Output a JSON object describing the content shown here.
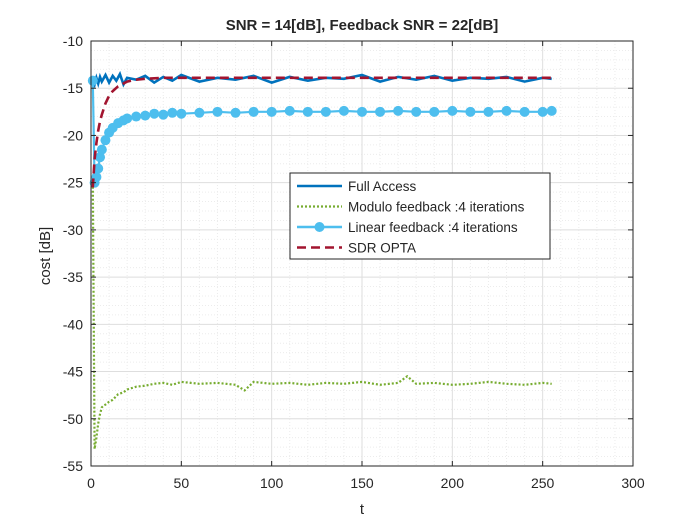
{
  "chart_data": {
    "type": "line",
    "title": "SNR = 14[dB], Feedback SNR = 22[dB]",
    "xlabel": "t",
    "ylabel": "cost [dB]",
    "xlim": [
      0,
      300
    ],
    "ylim": [
      -55,
      -10
    ],
    "xticks": [
      0,
      50,
      100,
      150,
      200,
      250,
      300
    ],
    "yticks": [
      -55,
      -50,
      -45,
      -40,
      -35,
      -30,
      -25,
      -20,
      -15,
      -10
    ],
    "grid": true,
    "minor_grid": true,
    "legend_position": "center-right",
    "series": [
      {
        "name": "Full Access",
        "color": "#0072BD",
        "style": "solid",
        "marker": "none",
        "x": [
          1,
          2,
          3,
          4,
          5,
          6,
          8,
          10,
          12,
          14,
          16,
          18,
          20,
          25,
          30,
          35,
          40,
          45,
          50,
          60,
          70,
          80,
          90,
          100,
          110,
          120,
          130,
          140,
          150,
          160,
          170,
          180,
          190,
          200,
          210,
          220,
          230,
          240,
          250,
          255
        ],
        "y": [
          -14.1,
          -14.6,
          -13.9,
          -14.5,
          -13.8,
          -14.3,
          -13.6,
          -14.4,
          -13.7,
          -14.2,
          -13.5,
          -14.6,
          -13.9,
          -14.1,
          -13.7,
          -14.4,
          -13.8,
          -14.2,
          -13.6,
          -14.3,
          -13.9,
          -14.1,
          -13.7,
          -14.4,
          -13.8,
          -14.2,
          -13.9,
          -14.0,
          -13.6,
          -14.3,
          -13.8,
          -14.1,
          -13.7,
          -14.2,
          -13.9,
          -14.0,
          -13.8,
          -14.3,
          -13.9,
          -14.0
        ]
      },
      {
        "name": "Modulo feedback :4 iterations",
        "color": "#77AC30",
        "style": "dotted",
        "marker": "none",
        "x": [
          1,
          2,
          3,
          4,
          5,
          6,
          7,
          8,
          10,
          12,
          15,
          18,
          20,
          25,
          30,
          35,
          40,
          45,
          50,
          60,
          70,
          80,
          85,
          90,
          100,
          110,
          120,
          130,
          140,
          150,
          160,
          170,
          175,
          180,
          190,
          200,
          210,
          220,
          230,
          240,
          250,
          255
        ],
        "y": [
          -25.0,
          -53.2,
          -52.0,
          -50.5,
          -49.5,
          -48.8,
          -48.6,
          -48.5,
          -48.2,
          -48.0,
          -47.4,
          -47.2,
          -46.9,
          -46.6,
          -46.5,
          -46.3,
          -46.2,
          -46.4,
          -46.1,
          -46.3,
          -46.2,
          -46.4,
          -47.0,
          -46.1,
          -46.3,
          -46.2,
          -46.4,
          -46.2,
          -46.3,
          -46.1,
          -46.4,
          -46.2,
          -45.5,
          -46.3,
          -46.2,
          -46.4,
          -46.3,
          -46.1,
          -46.3,
          -46.4,
          -46.2,
          -46.3
        ]
      },
      {
        "name": "Linear feedback :4 iterations",
        "color": "#4DBEEE",
        "style": "solid",
        "marker": "circle",
        "x": [
          1,
          2,
          3,
          4,
          5,
          6,
          8,
          10,
          12,
          15,
          18,
          20,
          25,
          30,
          35,
          40,
          45,
          50,
          60,
          70,
          80,
          90,
          100,
          110,
          120,
          130,
          140,
          150,
          160,
          170,
          180,
          190,
          200,
          210,
          220,
          230,
          240,
          250,
          255
        ],
        "y": [
          -14.2,
          -25.0,
          -24.4,
          -23.5,
          -22.3,
          -21.5,
          -20.5,
          -19.7,
          -19.2,
          -18.7,
          -18.4,
          -18.2,
          -18.0,
          -17.9,
          -17.7,
          -17.8,
          -17.6,
          -17.7,
          -17.6,
          -17.5,
          -17.6,
          -17.5,
          -17.5,
          -17.4,
          -17.5,
          -17.5,
          -17.4,
          -17.5,
          -17.5,
          -17.4,
          -17.5,
          -17.5,
          -17.4,
          -17.5,
          -17.5,
          -17.4,
          -17.5,
          -17.5,
          -17.4
        ]
      },
      {
        "name": "SDR OPTA",
        "color": "#A2142F",
        "style": "dashed",
        "marker": "none",
        "x": [
          1,
          2,
          3,
          4,
          5,
          6,
          8,
          10,
          12,
          15,
          20,
          25,
          30,
          40,
          50,
          75,
          100,
          150,
          200,
          255
        ],
        "y": [
          -25.5,
          -22.5,
          -20.8,
          -19.5,
          -18.5,
          -17.8,
          -16.6,
          -15.8,
          -15.3,
          -14.8,
          -14.3,
          -14.1,
          -14.0,
          -13.9,
          -13.9,
          -13.9,
          -13.9,
          -13.9,
          -13.9,
          -13.9
        ]
      }
    ]
  }
}
